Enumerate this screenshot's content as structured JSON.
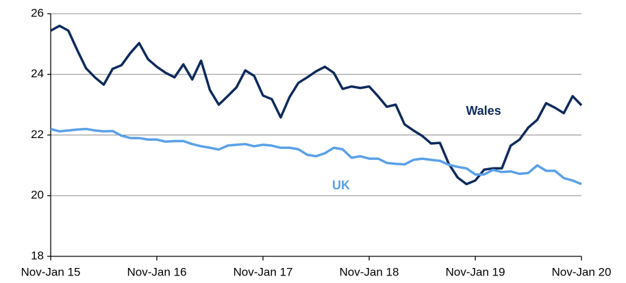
{
  "chart_data": {
    "type": "line",
    "categories": [
      "Nov-Jan 15",
      null,
      null,
      null,
      null,
      null,
      null,
      null,
      null,
      null,
      null,
      null,
      "Nov-Jan 16",
      null,
      null,
      null,
      null,
      null,
      null,
      null,
      null,
      null,
      null,
      null,
      "Nov-Jan 17",
      null,
      null,
      null,
      null,
      null,
      null,
      null,
      null,
      null,
      null,
      null,
      "Nov-Jan 18",
      null,
      null,
      null,
      null,
      null,
      null,
      null,
      null,
      null,
      null,
      null,
      "Nov-Jan 19",
      null,
      null,
      null,
      null,
      null,
      null,
      null,
      null,
      null,
      null,
      null,
      "Nov-Jan 20"
    ],
    "series": [
      {
        "name": "Wales",
        "color": "#0e2a5c",
        "values": [
          25.44,
          25.6,
          25.44,
          24.8,
          24.2,
          23.9,
          23.66,
          24.18,
          24.3,
          24.7,
          25.03,
          24.5,
          24.25,
          24.05,
          23.9,
          24.33,
          23.83,
          24.45,
          23.48,
          23.0,
          23.28,
          23.57,
          24.13,
          23.95,
          23.3,
          23.18,
          22.58,
          23.25,
          23.72,
          23.9,
          24.1,
          24.25,
          24.05,
          23.52,
          23.6,
          23.55,
          23.6,
          23.28,
          22.93,
          23.0,
          22.35,
          22.15,
          21.97,
          21.72,
          21.74,
          21.05,
          20.6,
          20.38,
          20.5,
          20.86,
          20.9,
          20.9,
          21.65,
          21.85,
          22.25,
          22.5,
          23.05,
          22.9,
          22.72,
          23.28,
          22.98
        ]
      },
      {
        "name": "UK",
        "color": "#5aa0e8",
        "values": [
          22.2,
          22.12,
          22.15,
          22.18,
          22.2,
          22.15,
          22.12,
          22.13,
          21.98,
          21.9,
          21.9,
          21.85,
          21.85,
          21.78,
          21.8,
          21.8,
          21.7,
          21.63,
          21.58,
          21.52,
          21.65,
          21.68,
          21.7,
          21.63,
          21.68,
          21.65,
          21.58,
          21.58,
          21.53,
          21.35,
          21.3,
          21.4,
          21.58,
          21.53,
          21.25,
          21.3,
          21.22,
          21.22,
          21.08,
          21.05,
          21.03,
          21.18,
          21.22,
          21.18,
          21.15,
          21.02,
          20.95,
          20.9,
          20.7,
          20.7,
          20.85,
          20.78,
          20.8,
          20.72,
          20.75,
          21.0,
          20.82,
          20.82,
          20.58,
          20.5,
          20.38
        ]
      }
    ],
    "ylim": [
      18,
      26
    ],
    "yticks": [
      18,
      20,
      22,
      24,
      26
    ],
    "grid": true
  }
}
